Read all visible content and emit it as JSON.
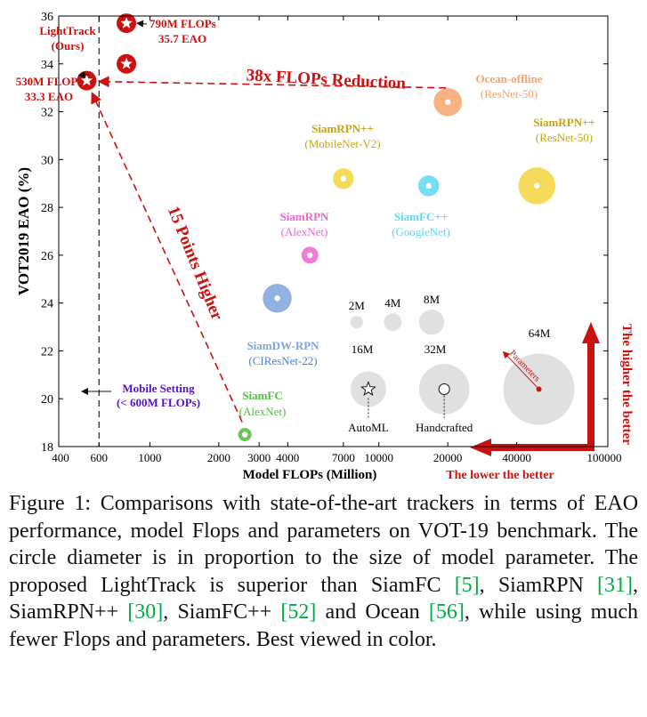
{
  "chart_data": {
    "type": "scatter",
    "xlabel": "Model FLOPs (Million)",
    "ylabel": "VOT2019  EAO (%)",
    "x_scale": "log",
    "xlim": [
      400,
      100000
    ],
    "ylim": [
      18,
      36
    ],
    "x_ticks": [
      "400",
      "600",
      "1000",
      "2000",
      "3000",
      "4000",
      "7000",
      "10000",
      "20000",
      "40000",
      "100000"
    ],
    "x_tick_values": [
      400,
      600,
      1000,
      2000,
      3000,
      4000,
      7000,
      10000,
      20000,
      40000,
      100000
    ],
    "y_ticks": [
      "18",
      "20",
      "22",
      "24",
      "26",
      "28",
      "30",
      "32",
      "34",
      "36"
    ],
    "y_tick_values": [
      18,
      20,
      22,
      24,
      26,
      28,
      30,
      32,
      34,
      36
    ],
    "trackers": [
      {
        "name": "SiamFC",
        "backbone": "(AlexNet)",
        "flops": 2600,
        "eao": 18.5,
        "params": 2.3,
        "color": "#55bb44"
      },
      {
        "name": "SiamRPN",
        "backbone": "(AlexNet)",
        "flops": 5000,
        "eao": 26.0,
        "params": 3.6,
        "color": "#ee66cc"
      },
      {
        "name": "SiamDW-RPN",
        "backbone": "(CIResNet-22)",
        "flops": 3600,
        "eao": 24.2,
        "params": 10.5,
        "color": "#7fa3dc"
      },
      {
        "name": "SiamRPN++",
        "backbone": "(MobileNet-V2)",
        "flops": 7000,
        "eao": 29.2,
        "params": 5.5,
        "color": "#f5d33c"
      },
      {
        "name": "SiamFC++",
        "backbone": "(GoogleNet)",
        "flops": 16500,
        "eao": 28.9,
        "params": 5.5,
        "color": "#5fd8ee"
      },
      {
        "name": "Ocean-offline",
        "backbone": "(ResNet-50)",
        "flops": 20000,
        "eao": 32.4,
        "params": 10.0,
        "color": "#f6a46e"
      },
      {
        "name": "SiamRPN++",
        "backbone": "(ResNet-50)",
        "flops": 49000,
        "eao": 28.9,
        "params": 17.2,
        "color": "#f5d33c"
      }
    ],
    "lighttrack": {
      "name": "LightTrack",
      "name2": "(Ours)",
      "points": [
        {
          "flops": 790,
          "eao": 35.7,
          "flops_label": "790M FLOPs",
          "eao_label": "35.7 EAO"
        },
        {
          "flops": 790,
          "eao": 34.0
        },
        {
          "flops": 530,
          "eao": 33.3,
          "flops_label": "530M FLOPs",
          "eao_label": "33.3 EAO"
        }
      ],
      "color": "#cc1111"
    },
    "legend": {
      "bubbles": [
        {
          "label": "2M",
          "params": 2,
          "flops": 8000,
          "eao": 23.2
        },
        {
          "label": "4M",
          "params": 4,
          "flops": 11500,
          "eao": 23.2
        },
        {
          "label": "8M",
          "params": 8,
          "flops": 17000,
          "eao": 23.2
        },
        {
          "label": "16M",
          "params": 16,
          "flops": 9000,
          "eao": 20.4
        },
        {
          "label": "32M",
          "params": 32,
          "flops": 19300,
          "eao": 20.4
        },
        {
          "label": "64M",
          "params": 64,
          "flops": 50000,
          "eao": 20.4
        }
      ],
      "automl_label": "AutoML",
      "handcrafted_label": "Handcrafted",
      "parameters_label": "Parameters"
    },
    "annotations": {
      "mobile_setting_line": 600,
      "mobile_setting": [
        "Mobile Setting",
        "(< 600M FLOPs)"
      ],
      "flops_reduction": "38x FLOPs Reduction",
      "points_higher": "15 Points Higher",
      "higher_better": "The higher the better",
      "lower_better": "The lower the better"
    },
    "colors": {
      "lighttrack": "#cc1111",
      "mobile_text": "#5511cc",
      "grey_bubble": "#e0e0e0",
      "axis": "#000000"
    }
  },
  "caption": {
    "figure_label": "Figure 1:",
    "text": "Comparisons with state-of-the-art trackers in terms of EAO performance, model Flops and parameters on VOT-19 benchmark. The circle diameter is in proportion to the size of model parameter. The proposed LightTrack is superior than SiamFC",
    "ref1": "[5]",
    "sep1": ", SiamRPN ",
    "ref2": "[31]",
    "sep2": ", SiamRPN++ ",
    "ref3": "[30]",
    "sep3": ", SiamFC++ ",
    "ref4": "[52]",
    "sep4": " and Ocean ",
    "ref5": "[56]",
    "tail": ", while using much fewer Flops and parameters. Best viewed in color."
  }
}
